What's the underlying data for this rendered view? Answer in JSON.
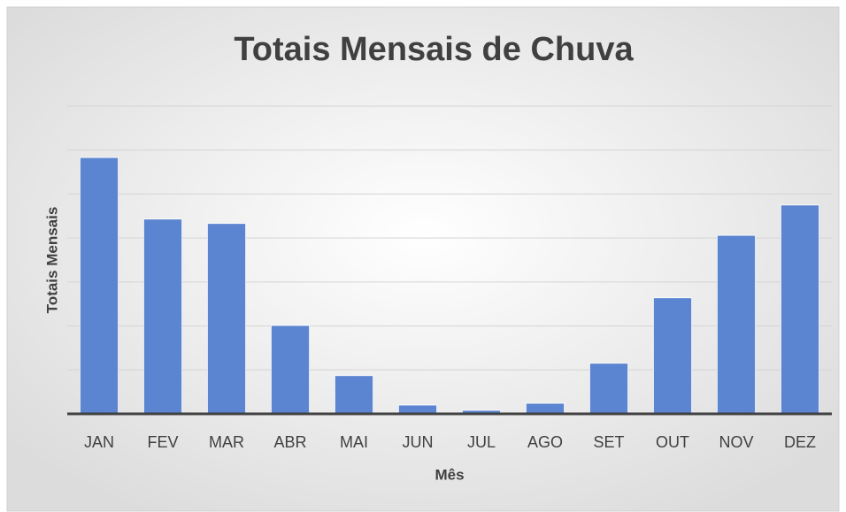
{
  "chart_data": {
    "type": "bar",
    "title": "Totais Mensais de Chuva",
    "x_label": "Mês",
    "y_label": "Totais Mensais",
    "categories": [
      "JAN",
      "FEV",
      "MAR",
      "ABR",
      "MAI",
      "JUN",
      "JUL",
      "AGO",
      "SET",
      "OUT",
      "NOV",
      "DEZ"
    ],
    "values": [
      5.83,
      4.43,
      4.33,
      2.01,
      0.87,
      0.2,
      0.08,
      0.24,
      1.15,
      2.64,
      4.06,
      4.75
    ],
    "color": "#5b84d1",
    "ylim": [
      0,
      7
    ],
    "yticks": [
      0,
      1,
      2,
      3,
      4,
      5,
      6,
      7
    ],
    "grid": true
  }
}
